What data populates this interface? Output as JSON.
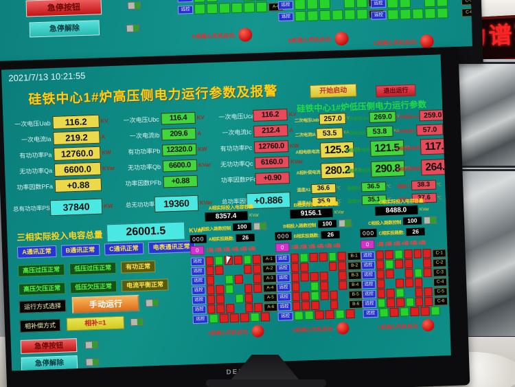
{
  "photo": {
    "led_sign": "力谱写",
    "monitor_brand": "DELL"
  },
  "top_screen": {
    "estop": "急停按钮",
    "estop_release": "急停解除",
    "remote": "远控",
    "grids": [
      {
        "labels": [
          "A-5",
          "A-6"
        ],
        "rows": [
          [
            "g",
            "g",
            "",
            "",
            "g",
            "g"
          ],
          [
            "g",
            "g",
            "g",
            "g",
            "g",
            "g"
          ]
        ],
        "fan": "A相离心风机启动:"
      },
      {
        "labels": [
          "B-4",
          "B-5",
          "B-6"
        ],
        "rows": [
          [
            "g",
            "g",
            "",
            "g",
            "g",
            ""
          ],
          [
            "g",
            "g",
            "g",
            "",
            "g",
            "g"
          ],
          [
            "g",
            "g",
            "g",
            "g",
            "g",
            "g"
          ]
        ],
        "fan": "B相离心风机启动:"
      },
      {
        "labels": [
          "C-4",
          "C-5",
          "C-6"
        ],
        "rows": [
          [
            "g",
            "g",
            "g",
            "g",
            "",
            ""
          ],
          [
            "g",
            "g",
            "",
            "g",
            "g",
            ""
          ],
          [
            "g",
            "g",
            "g",
            "g",
            "g",
            ""
          ]
        ],
        "fan": "C相离心风机启动:"
      }
    ]
  },
  "screen": {
    "timestamp": "2021/7/13 10:21:55",
    "title": "硅铁中心1#炉高压侧电力运行参数及报警",
    "start_btn": "开始启动",
    "exit_btn": "退出运行",
    "lv_title": "硅铁中心1#炉低压侧电力运行参数",
    "hv": {
      "columns": [
        {
          "phase": "A",
          "color": "#e9d94b",
          "rows": [
            {
              "label": "一次电压Uab",
              "value": "116.2",
              "unit": "KV"
            },
            {
              "label": "一次电流Ia",
              "value": "219.2",
              "unit": "A"
            },
            {
              "label": "有功功率Pa",
              "value": "12760.0",
              "unit": "KW"
            },
            {
              "label": "无功功率Qa",
              "value": "6600.0",
              "unit": "KVar"
            },
            {
              "label": "功率因数PFa",
              "value": "+0.88",
              "unit": ""
            }
          ],
          "total": {
            "label": "总有功功率PS",
            "value": "37840",
            "unit": "KW"
          }
        },
        {
          "phase": "B",
          "color": "#40d63c",
          "rows": [
            {
              "label": "一次电压Ubc",
              "value": "116.4",
              "unit": "KV"
            },
            {
              "label": "一次电流Ib",
              "value": "209.6",
              "unit": "A"
            },
            {
              "label": "有功功率Pb",
              "value": "12320.0",
              "unit": "KW"
            },
            {
              "label": "无功功率Qb",
              "value": "6600.0",
              "unit": "KVar"
            },
            {
              "label": "功率因数PFb",
              "value": "+0.88",
              "unit": ""
            }
          ],
          "total": {
            "label": "总无功功率QS",
            "value": "19360",
            "unit": "KVar"
          }
        },
        {
          "phase": "C",
          "color": "#e84a5c",
          "rows": [
            {
              "label": "一次电压Uca",
              "value": "116.2",
              "unit": "KV"
            },
            {
              "label": "一次电流Ic",
              "value": "212.4",
              "unit": "A"
            },
            {
              "label": "有功功率Pc",
              "value": "12760.0",
              "unit": "KW"
            },
            {
              "label": "无功功率Qc",
              "value": "6160.0",
              "unit": "KVar"
            },
            {
              "label": "功率因数PFc",
              "value": "+0.90",
              "unit": ""
            }
          ],
          "total": {
            "label": "总功率因数PFS",
            "value": "+0.886",
            "unit": ""
          }
        }
      ]
    },
    "lv": {
      "columns": [
        {
          "phase": "A",
          "color": "#e9d94b",
          "rows": [
            {
              "label": "二次电压Uab",
              "value": "257.0",
              "unit": "V",
              "size": "s"
            },
            {
              "label": "二次电流IA",
              "value": "53.5",
              "unit": "KA",
              "size": "s"
            },
            {
              "label": "A相电极电流",
              "value": "125.3",
              "unit": "KA",
              "size": "l"
            },
            {
              "label": "A相补偿电流",
              "value": "280.2",
              "unit": "KA",
              "size": "l"
            },
            {
              "label": "温度A1",
              "value": "36.6",
              "unit": "℃",
              "size": "xs"
            },
            {
              "label": "温度A2",
              "value": "35.9",
              "unit": "℃",
              "size": "xs"
            }
          ]
        },
        {
          "phase": "B",
          "color": "#40d63c",
          "rows": [
            {
              "label": "二次电压Ubc",
              "value": "269.0",
              "unit": "V",
              "size": "s"
            },
            {
              "label": "二次电流IB",
              "value": "53.8",
              "unit": "KA",
              "size": "s"
            },
            {
              "label": "B相电极电流",
              "value": "121.5",
              "unit": "KA",
              "size": "l"
            },
            {
              "label": "B相补偿电流",
              "value": "290.8",
              "unit": "KA",
              "size": "l"
            },
            {
              "label": "温度B1",
              "value": "36.5",
              "unit": "℃",
              "size": "xs"
            },
            {
              "label": "温度B2",
              "value": "35.1",
              "unit": "℃",
              "size": "xs"
            }
          ]
        },
        {
          "phase": "C",
          "color": "#e84a5c",
          "rows": [
            {
              "label": "二次电压Uca",
              "value": "259.0",
              "unit": "V",
              "size": "s"
            },
            {
              "label": "二次电流IC",
              "value": "57.0",
              "unit": "KA",
              "size": "s"
            },
            {
              "label": "C相电极电流",
              "value": "117.7",
              "unit": "KA",
              "size": "l"
            },
            {
              "label": "C相补偿电流",
              "value": "264.9",
              "unit": "KA",
              "size": "l"
            },
            {
              "label": "温度C1",
              "value": "38.3",
              "unit": "℃",
              "size": "xs"
            },
            {
              "label": "温度C2",
              "value": "37.6",
              "unit": "℃",
              "size": "xs"
            }
          ]
        }
      ]
    },
    "cap_total": {
      "label": "三相实际投入电容总量",
      "value": "26001.5",
      "unit": "KVar"
    },
    "status_rows": [
      [
        {
          "text": "A通讯正常",
          "style": "blue"
        },
        {
          "text": "B通讯正常",
          "style": "blue"
        },
        {
          "text": "C通讯正常",
          "style": "blue"
        },
        {
          "text": "电表通讯正常",
          "style": "blue"
        }
      ],
      [
        {
          "text": "高压过压正常",
          "style": "green"
        },
        {
          "text": "低压过压正常",
          "style": "green"
        },
        {
          "text": "有功正常",
          "style": "olive"
        }
      ],
      [
        {
          "text": "高压欠压正常",
          "style": "green"
        },
        {
          "text": "低压欠压正常",
          "style": "green"
        },
        {
          "text": "电流平衡正常",
          "style": "olive"
        }
      ]
    ],
    "mode": {
      "label": "运行方式选择",
      "btn": "手动运行"
    },
    "comp": {
      "label": "相补偿方式",
      "btn": "相补=1"
    },
    "estop": "急停按钮",
    "estop_release": "急停解除",
    "remote": "远控",
    "panels": [
      {
        "title": "A相实际投入电容容量:",
        "value": "8357.4",
        "unit": "KVar",
        "ctrl_label": "A相投入路数控制",
        "ctrl_value": "100",
        "counter": "000",
        "act_label": "A相实投路数:",
        "act_value": "26",
        "zero": "0",
        "cols": "1路 2路 3路 4路 5路 6路",
        "row_labels": [
          "A-1",
          "A-2",
          "A-3",
          "A-4",
          "A-5",
          "A-6",
          ""
        ],
        "rows": [
          [
            "r",
            "g",
            "r",
            "r",
            "g",
            "r"
          ],
          [
            "r",
            "r",
            "",
            "",
            "r",
            "r"
          ],
          [
            "r",
            "",
            "g",
            "r",
            "",
            "r"
          ],
          [
            "r",
            "r",
            "g",
            "",
            "r",
            "r"
          ],
          [
            "r",
            "r",
            "",
            "g",
            "r",
            ""
          ],
          [
            "r",
            "r",
            "r",
            "",
            "r",
            "r"
          ],
          [
            "g",
            "r",
            "r",
            "r",
            "g",
            "r"
          ]
        ],
        "fan": "A相离心风机启动:"
      },
      {
        "title": "B相实际投入电容容量:",
        "value": "9156.1",
        "unit": "KVar",
        "ctrl_label": "B相投入路数控制",
        "ctrl_value": "100",
        "counter": "000",
        "act_label": "B相实投路数:",
        "act_value": "26",
        "zero": "0",
        "cols": "1路 2路 3路 4路 5路 6路",
        "row_labels": [
          "B-1",
          "B-2",
          "B-3",
          "B-4",
          "B-5",
          "B-6",
          ""
        ],
        "rows": [
          [
            "r",
            "g",
            "r",
            "r",
            "g",
            "r"
          ],
          [
            "r",
            "r",
            "",
            "",
            "r",
            "r"
          ],
          [
            "r",
            "r",
            "r",
            "r",
            "",
            "r"
          ],
          [
            "r",
            "",
            "g",
            "r",
            "",
            "r"
          ],
          [
            "r",
            "r",
            "g",
            "r",
            "r",
            ""
          ],
          [
            "r",
            "r",
            "r",
            "",
            "r",
            ""
          ],
          [
            "g",
            "g",
            "r",
            "r",
            "g",
            "r"
          ]
        ],
        "fan": "B相离心风机启动:"
      },
      {
        "title": "C相实际投入电容容量:",
        "value": "8488.0",
        "unit": "KVar",
        "ctrl_label": "C相投入路数控制",
        "ctrl_value": "100",
        "counter": "000",
        "act_label": "C相实投路数:",
        "act_value": "26",
        "zero": "0",
        "cols": "1路 2路 3路 4路 5路 6路",
        "row_labels": [
          "C-1",
          "C-2",
          "C-3",
          "C-4",
          "C-5",
          "C-6",
          ""
        ],
        "rows": [
          [
            "r",
            "r",
            "g",
            "r",
            "r",
            "r"
          ],
          [
            "r",
            "g",
            "r",
            "r",
            "",
            "r"
          ],
          [
            "r",
            "r",
            "",
            "r",
            "g",
            "r"
          ],
          [
            "r",
            "",
            "r",
            "r",
            "r",
            ""
          ],
          [
            "r",
            "r",
            "g",
            "",
            "r",
            "r"
          ],
          [
            "g",
            "r",
            "r",
            "g",
            "r",
            "r"
          ],
          [
            "g",
            "r",
            "g",
            "r",
            "r",
            "g"
          ]
        ],
        "fan": "C相离心风机启动:"
      }
    ]
  }
}
